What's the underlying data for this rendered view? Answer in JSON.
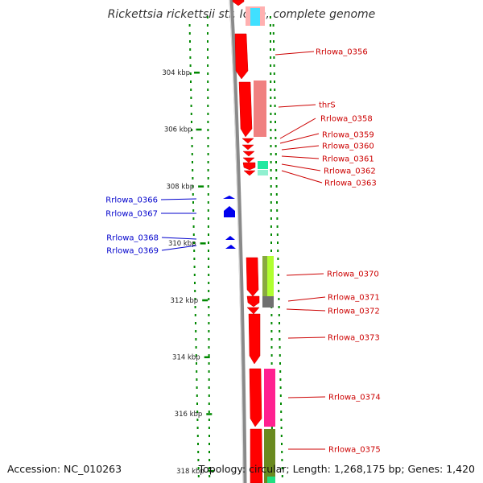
{
  "title": "Rickettsia rickettsii str. Iowa, complete genome",
  "accession_text": "Accession: NC_010263",
  "summary_text": "Topology: circular; Length: 1,268,175 bp; Genes: 1,420",
  "ruler": {
    "ticks": [
      {
        "label": "304 kbp",
        "kbp": 304
      },
      {
        "label": "306 kbp",
        "kbp": 306
      },
      {
        "label": "308 kbp",
        "kbp": 308
      },
      {
        "label": "310 kbp",
        "kbp": 310
      },
      {
        "label": "312 kbp",
        "kbp": 312
      },
      {
        "label": "314 kbp",
        "kbp": 314
      },
      {
        "label": "316 kbp",
        "kbp": 316
      },
      {
        "label": "318 kbp",
        "kbp": 318
      }
    ]
  },
  "colors": {
    "forward_cds": "#ff0000",
    "reverse_cds": "#0000ee",
    "backbone": "#888888",
    "tick": "#008800",
    "label_forward": "#cc0000",
    "label_reverse": "#0000cc"
  },
  "forward_labels": [
    {
      "text": "Rrlowa_0356"
    },
    {
      "text": "thrS"
    },
    {
      "text": "Rrlowa_0358"
    },
    {
      "text": "Rrlowa_0359"
    },
    {
      "text": "Rrlowa_0360"
    },
    {
      "text": "Rrlowa_0361"
    },
    {
      "text": "Rrlowa_0362"
    },
    {
      "text": "Rrlowa_0363"
    },
    {
      "text": "Rrlowa_0370"
    },
    {
      "text": "Rrlowa_0371"
    },
    {
      "text": "Rrlowa_0372"
    },
    {
      "text": "Rrlowa_0373"
    },
    {
      "text": "Rrlowa_0374"
    },
    {
      "text": "Rrlowa_0375"
    }
  ],
  "reverse_labels": [
    {
      "text": "Rrlowa_0366"
    },
    {
      "text": "Rrlowa_0367"
    },
    {
      "text": "Rrlowa_0368"
    },
    {
      "text": "Rrlowa_0369"
    }
  ],
  "cog_colors": [
    "#ffb0b0",
    "#40e0ff",
    "#f08080",
    "#20e8a0",
    "#b0ff30",
    "#707070",
    "#ff2090",
    "#6a8a20",
    "#20e080"
  ]
}
